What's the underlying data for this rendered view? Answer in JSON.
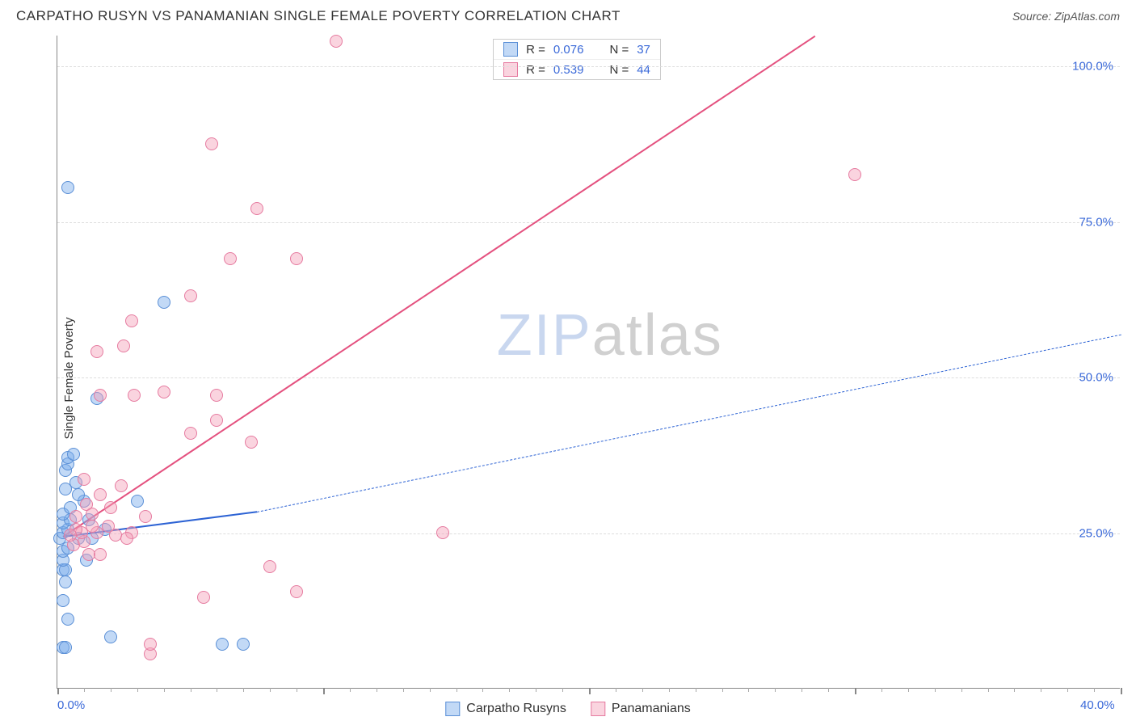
{
  "title": "CARPATHO RUSYN VS PANAMANIAN SINGLE FEMALE POVERTY CORRELATION CHART",
  "source": "Source: ZipAtlas.com",
  "ylabel": "Single Female Poverty",
  "watermark": {
    "a": "ZIP",
    "b": "atlas"
  },
  "chart": {
    "type": "scatter",
    "background_color": "#ffffff",
    "grid_color": "#dddddd",
    "axis_color": "#888888",
    "label_color": "#3968d8",
    "text_color": "#333333",
    "xlim": [
      0,
      40
    ],
    "ylim": [
      0,
      105
    ],
    "x_major_ticks": [
      0,
      10,
      20,
      30,
      40
    ],
    "x_minor_step": 1,
    "y_ticks": [
      25,
      50,
      75,
      100
    ],
    "x_tick_labels": {
      "0": "0.0%",
      "40": "40.0%"
    },
    "y_tick_labels": {
      "25": "25.0%",
      "50": "50.0%",
      "75": "75.0%",
      "100": "100.0%"
    },
    "marker_radius": 8,
    "series": [
      {
        "key": "carpatho",
        "label": "Carpatho Rusyns",
        "fill": "rgba(120,170,235,0.45)",
        "stroke": "#5a8fd6",
        "stats": {
          "R": "0.076",
          "N": "37"
        },
        "trend": {
          "solid": {
            "x1": 0.2,
            "y1": 24.5,
            "x2": 7.5,
            "y2": 28.5
          },
          "dashed": {
            "x1": 7.5,
            "y1": 28.5,
            "x2": 40,
            "y2": 57
          },
          "color": "#2d63d4"
        },
        "points": [
          [
            0.2,
            6.5
          ],
          [
            0.3,
            6.5
          ],
          [
            2.0,
            8.2
          ],
          [
            0.4,
            11.0
          ],
          [
            0.2,
            14.0
          ],
          [
            0.3,
            17.0
          ],
          [
            0.2,
            19.0
          ],
          [
            0.3,
            19.0
          ],
          [
            0.2,
            20.5
          ],
          [
            1.1,
            20.5
          ],
          [
            0.2,
            22.0
          ],
          [
            0.4,
            22.5
          ],
          [
            0.1,
            24.0
          ],
          [
            0.8,
            24.0
          ],
          [
            1.3,
            24.0
          ],
          [
            0.2,
            25.0
          ],
          [
            0.4,
            25.5
          ],
          [
            1.8,
            25.5
          ],
          [
            0.2,
            26.5
          ],
          [
            0.5,
            27.0
          ],
          [
            1.2,
            27.0
          ],
          [
            0.2,
            28.0
          ],
          [
            0.5,
            29.0
          ],
          [
            1.0,
            30.0
          ],
          [
            0.8,
            31.0
          ],
          [
            0.3,
            32.0
          ],
          [
            0.7,
            33.0
          ],
          [
            0.3,
            35.0
          ],
          [
            0.4,
            36.0
          ],
          [
            0.4,
            37.0
          ],
          [
            0.6,
            37.5
          ],
          [
            1.5,
            46.5
          ],
          [
            4.0,
            62.0
          ],
          [
            0.4,
            80.5
          ],
          [
            6.2,
            7.0
          ],
          [
            7.0,
            7.0
          ],
          [
            3.0,
            30.0
          ]
        ]
      },
      {
        "key": "panamanian",
        "label": "Panamanians",
        "fill": "rgba(245,160,185,0.45)",
        "stroke": "#e67ba0",
        "stats": {
          "R": "0.539",
          "N": "44"
        },
        "trend": {
          "solid": {
            "x1": 0.2,
            "y1": 24.5,
            "x2": 28.5,
            "y2": 105
          },
          "dashed": null,
          "color": "#e4517f"
        },
        "points": [
          [
            3.5,
            5.5
          ],
          [
            5.5,
            14.5
          ],
          [
            9.0,
            15.5
          ],
          [
            8.0,
            19.5
          ],
          [
            1.2,
            21.5
          ],
          [
            1.6,
            21.5
          ],
          [
            0.6,
            23.0
          ],
          [
            1.0,
            23.5
          ],
          [
            2.2,
            24.5
          ],
          [
            0.9,
            25.0
          ],
          [
            1.5,
            25.0
          ],
          [
            2.8,
            25.0
          ],
          [
            0.7,
            25.5
          ],
          [
            1.3,
            26.0
          ],
          [
            1.9,
            26.0
          ],
          [
            0.7,
            27.5
          ],
          [
            3.3,
            27.5
          ],
          [
            2.0,
            29.0
          ],
          [
            1.1,
            29.5
          ],
          [
            1.6,
            31.0
          ],
          [
            2.4,
            32.5
          ],
          [
            1.0,
            33.5
          ],
          [
            14.5,
            25.0
          ],
          [
            5.0,
            41.0
          ],
          [
            7.3,
            39.5
          ],
          [
            6.0,
            43.0
          ],
          [
            6.0,
            47.0
          ],
          [
            1.6,
            47.0
          ],
          [
            2.9,
            47.0
          ],
          [
            4.0,
            47.5
          ],
          [
            1.5,
            54.0
          ],
          [
            2.5,
            55.0
          ],
          [
            2.8,
            59.0
          ],
          [
            5.0,
            63.0
          ],
          [
            6.5,
            69.0
          ],
          [
            9.0,
            69.0
          ],
          [
            7.5,
            77.0
          ],
          [
            5.8,
            87.5
          ],
          [
            10.5,
            104.0
          ],
          [
            30.0,
            82.5
          ],
          [
            3.5,
            7.0
          ],
          [
            1.3,
            28.0
          ],
          [
            2.6,
            24.0
          ],
          [
            0.5,
            24.5
          ]
        ]
      }
    ],
    "legend_labels": {
      "R": "R =",
      "N": "N ="
    }
  }
}
